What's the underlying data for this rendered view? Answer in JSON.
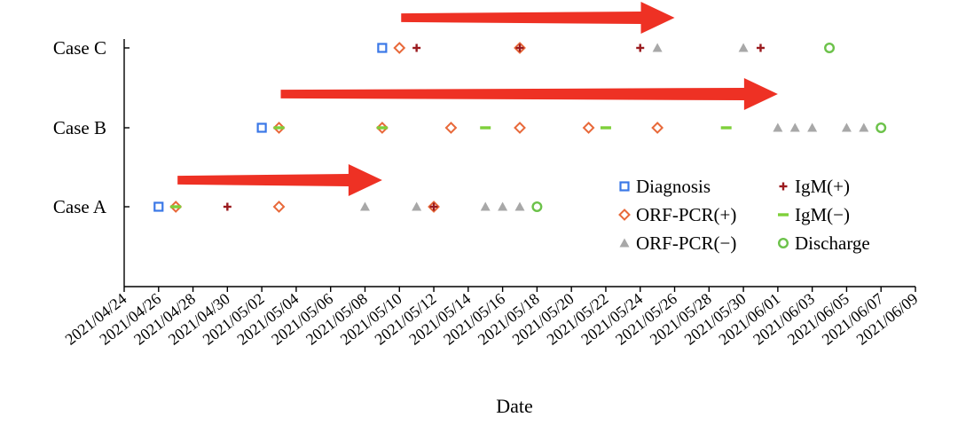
{
  "chart_data": {
    "type": "scatter",
    "title": "",
    "xlabel": "Date",
    "ylabel": "",
    "categories": [
      "Case A",
      "Case B",
      "Case C"
    ],
    "x_tick_labels": [
      "2021/04/24",
      "2021/04/26",
      "2021/04/28",
      "2021/04/30",
      "2021/05/02",
      "2021/05/04",
      "2021/05/06",
      "2021/05/08",
      "2021/05/10",
      "2021/05/12",
      "2021/05/14",
      "2021/05/16",
      "2021/05/18",
      "2021/05/20",
      "2021/05/22",
      "2021/05/24",
      "2021/05/26",
      "2021/05/28",
      "2021/05/30",
      "2021/06/01",
      "2021/06/03",
      "2021/06/05",
      "2021/06/07",
      "2021/06/09"
    ],
    "xlim": [
      "2021/04/24",
      "2021/06/09"
    ],
    "grid": false,
    "legend_position": "right, inside plot",
    "series": [
      {
        "name": "Diagnosis",
        "marker": "square",
        "color": "#3b78e7",
        "points": [
          [
            "2021/04/26",
            "Case A"
          ],
          [
            "2021/05/02",
            "Case B"
          ],
          [
            "2021/05/09",
            "Case C"
          ]
        ]
      },
      {
        "name": "ORF-PCR(+)",
        "marker": "diamond",
        "color": "#e8693a",
        "points": [
          [
            "2021/04/27",
            "Case A"
          ],
          [
            "2021/05/03",
            "Case A"
          ],
          [
            "2021/05/12",
            "Case A"
          ],
          [
            "2021/05/03",
            "Case B"
          ],
          [
            "2021/05/09",
            "Case B"
          ],
          [
            "2021/05/13",
            "Case B"
          ],
          [
            "2021/05/17",
            "Case B"
          ],
          [
            "2021/05/21",
            "Case B"
          ],
          [
            "2021/05/25",
            "Case B"
          ],
          [
            "2021/05/10",
            "Case C"
          ],
          [
            "2021/05/17",
            "Case C"
          ]
        ]
      },
      {
        "name": "ORF-PCR(−)",
        "marker": "triangle",
        "color": "#a8a8a8",
        "points": [
          [
            "2021/05/08",
            "Case A"
          ],
          [
            "2021/05/11",
            "Case A"
          ],
          [
            "2021/05/15",
            "Case A"
          ],
          [
            "2021/05/16",
            "Case A"
          ],
          [
            "2021/05/17",
            "Case A"
          ],
          [
            "2021/06/01",
            "Case B"
          ],
          [
            "2021/06/02",
            "Case B"
          ],
          [
            "2021/06/03",
            "Case B"
          ],
          [
            "2021/06/05",
            "Case B"
          ],
          [
            "2021/06/06",
            "Case B"
          ],
          [
            "2021/05/25",
            "Case C"
          ],
          [
            "2021/05/30",
            "Case C"
          ]
        ]
      },
      {
        "name": "IgM(+)",
        "marker": "plus",
        "color": "#9b1b1f",
        "points": [
          [
            "2021/04/30",
            "Case A"
          ],
          [
            "2021/05/12",
            "Case A"
          ],
          [
            "2021/05/11",
            "Case C"
          ],
          [
            "2021/05/17",
            "Case C"
          ],
          [
            "2021/05/24",
            "Case C"
          ],
          [
            "2021/05/31",
            "Case C"
          ]
        ]
      },
      {
        "name": "IgM(−)",
        "marker": "dash",
        "color": "#7ed03a",
        "points": [
          [
            "2021/04/27",
            "Case A"
          ],
          [
            "2021/05/03",
            "Case B"
          ],
          [
            "2021/05/09",
            "Case B"
          ],
          [
            "2021/05/15",
            "Case B"
          ],
          [
            "2021/05/22",
            "Case B"
          ],
          [
            "2021/05/29",
            "Case B"
          ]
        ]
      },
      {
        "name": "Discharge",
        "marker": "circle",
        "color": "#6cc24a",
        "points": [
          [
            "2021/05/18",
            "Case A"
          ],
          [
            "2021/06/07",
            "Case B"
          ],
          [
            "2021/06/04",
            "Case C"
          ]
        ]
      }
    ],
    "annotations": [
      {
        "type": "arrow",
        "color": "#ee3124",
        "row": "Case A",
        "from": "2021/04/27",
        "to": "2021/05/09"
      },
      {
        "type": "arrow",
        "color": "#ee3124",
        "row": "Case B",
        "from": "2021/05/03",
        "to": "2021/06/01"
      },
      {
        "type": "arrow",
        "color": "#ee3124",
        "row": "Case C",
        "from": "2021/05/10",
        "to": "2021/05/26"
      }
    ]
  }
}
